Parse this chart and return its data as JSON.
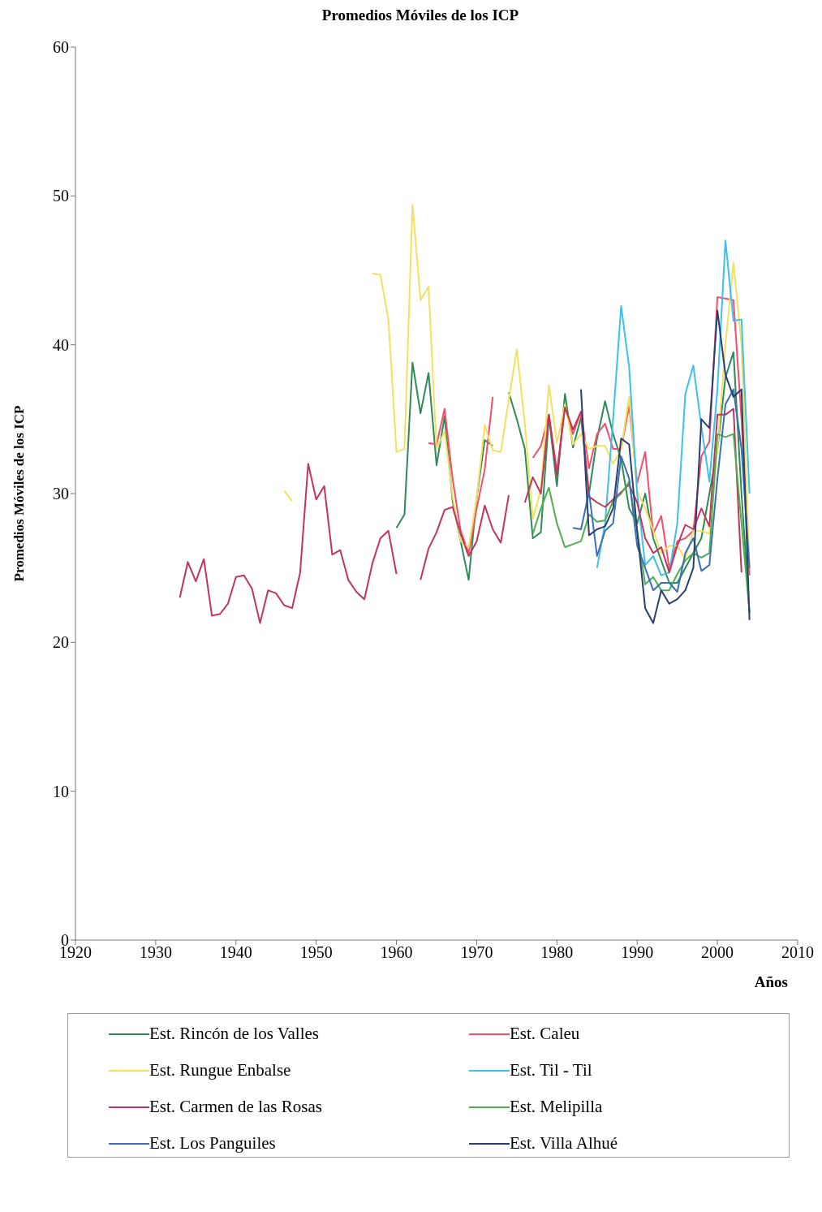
{
  "chart_data": {
    "type": "line",
    "title": "Promedios Móviles de los ICP",
    "xlabel": "Años",
    "ylabel": "Promedios Móviles de los ICP",
    "xlim": [
      1920,
      2010
    ],
    "xticks": [
      1920,
      1930,
      1940,
      1950,
      1960,
      1970,
      1980,
      1990,
      2000,
      2010
    ],
    "ylim": [
      0,
      60
    ],
    "yticks": [
      0,
      10,
      20,
      30,
      40,
      50,
      60
    ],
    "grid": false,
    "legend": "bottom",
    "marker": "none",
    "line_style": "solid",
    "series": [
      {
        "name": "Est. Rincón de los Valles",
        "color": "#2e8b57",
        "x": [
          1960,
          1961,
          1962,
          1963,
          1964,
          1965,
          1966,
          1967,
          1968,
          1969,
          1970,
          1971,
          1972,
          1973,
          1974,
          1975,
          1976,
          1977,
          1978,
          1979,
          1980,
          1981,
          1982,
          1983,
          1984,
          1985,
          1986,
          1987,
          1988,
          1989,
          1990,
          1991,
          1992,
          1993,
          1994,
          1995,
          1996,
          1997,
          1998,
          1999,
          2000,
          2001,
          2002,
          2003,
          2004
        ],
        "values": [
          27.7,
          28.6,
          38.8,
          35.4,
          38.1,
          31.9,
          35.2,
          29.5,
          26.8,
          24.2,
          29.7,
          33.6,
          33.2,
          null,
          36.8,
          35.0,
          33.0,
          27.0,
          27.4,
          35.2,
          30.5,
          36.7,
          33.1,
          35.1,
          30.0,
          33.7,
          36.2,
          34.0,
          32.3,
          29.0,
          28.0,
          30.0,
          27.0,
          25.5,
          24.0,
          24.0,
          25.0,
          26.0,
          27.0,
          30.0,
          33.0,
          37.8,
          39.5,
          30.0,
          22.0
        ]
      },
      {
        "name": "Est. Caleu",
        "color": "#f0506e",
        "x": [
          1964,
          1965,
          1966,
          1967,
          1968,
          1969,
          1970,
          1971,
          1972,
          1973,
          1974,
          1975,
          1976,
          1977,
          1978,
          1979,
          1980,
          1981,
          1982,
          1983,
          1984,
          1985,
          1986,
          1987,
          1988,
          1989,
          1990,
          1991,
          1992,
          1993,
          1994,
          1995,
          1996,
          1997,
          1998,
          1999,
          2000,
          2001,
          2002,
          2003,
          2004
        ],
        "values": [
          33.4,
          33.3,
          35.7,
          31.0,
          27.5,
          26.0,
          29.0,
          31.6,
          36.5,
          null,
          null,
          null,
          null,
          32.4,
          33.2,
          35.3,
          31.5,
          35.8,
          34.0,
          35.5,
          31.7,
          34.0,
          34.7,
          33.0,
          33.0,
          35.9,
          30.7,
          32.8,
          27.3,
          28.5,
          25.0,
          26.8,
          27.0,
          27.5,
          32.5,
          33.5,
          43.2,
          43.1,
          43.0,
          35.0,
          24.5
        ]
      },
      {
        "name": "Est. Rungue Enbalse",
        "color": "#f2e160",
        "x": [
          1946,
          1947,
          1948,
          1949,
          1950,
          1951,
          1952,
          1953,
          1954,
          1955,
          1956,
          1957,
          1958,
          1959,
          1960,
          1961,
          1962,
          1963,
          1964,
          1965,
          1966,
          1967,
          1968,
          1969,
          1970,
          1971,
          1972,
          1973,
          1974,
          1975,
          1976,
          1977,
          1978,
          1979,
          1980,
          1981,
          1982,
          1983,
          1984,
          1985,
          1986,
          1987,
          1988,
          1989,
          1990,
          1991,
          1992,
          1993,
          1994,
          1995,
          1996,
          1997,
          1998,
          1999,
          2000,
          2001,
          2002,
          2003,
          2004
        ],
        "values": [
          30.2,
          29.5,
          null,
          null,
          null,
          null,
          null,
          null,
          null,
          null,
          null,
          44.8,
          44.7,
          41.7,
          32.8,
          33.0,
          49.4,
          43.0,
          43.9,
          33.0,
          34.2,
          29.8,
          26.8,
          26.4,
          29.7,
          34.6,
          32.9,
          32.8,
          36.3,
          39.7,
          34.7,
          28.3,
          30.3,
          37.3,
          33.4,
          36.0,
          33.3,
          34.0,
          33.0,
          33.2,
          33.2,
          32.0,
          33.0,
          36.5,
          30.2,
          29.0,
          27.5,
          26.0,
          26.5,
          26.5,
          25.6,
          27.5,
          27.5,
          27.3,
          33.0,
          40.0,
          45.5,
          40.0,
          25.0
        ]
      },
      {
        "name": "Est. Til - Til",
        "color": "#40c0e8",
        "x": [
          1985,
          1986,
          1987,
          1988,
          1989,
          1990,
          1991,
          1992,
          1993,
          1994,
          1995,
          1996,
          1997,
          1998,
          1999,
          2000,
          2001,
          2002,
          2003,
          2004
        ],
        "values": [
          25.0,
          28.0,
          35.0,
          42.6,
          38.5,
          30.0,
          25.2,
          25.8,
          24.5,
          24.7,
          28.0,
          36.7,
          38.6,
          34.5,
          30.8,
          37.0,
          47.0,
          41.6,
          41.7,
          30.0
        ]
      },
      {
        "name": "Est. Carmen de las Rosas",
        "color": "#c0365a",
        "x": [
          1933,
          1934,
          1935,
          1936,
          1937,
          1938,
          1939,
          1940,
          1941,
          1942,
          1943,
          1944,
          1945,
          1946,
          1947,
          1948,
          1949,
          1950,
          1951,
          1952,
          1953,
          1954,
          1955,
          1956,
          1957,
          1958,
          1959,
          1960,
          1961,
          1962,
          1963,
          1964,
          1965,
          1966,
          1967,
          1968,
          1969,
          1970,
          1971,
          1972,
          1973,
          1974,
          1975,
          1976,
          1977,
          1978,
          1979,
          1980,
          1981,
          1982,
          1983,
          1984,
          1985,
          1986,
          1987,
          1988,
          1989,
          1990,
          1991,
          1992,
          1993,
          1994,
          1995,
          1996,
          1997,
          1998,
          1999,
          2000,
          2001,
          2002,
          2003
        ],
        "values": [
          23.0,
          25.4,
          24.1,
          25.6,
          21.8,
          21.9,
          22.6,
          24.4,
          24.5,
          23.6,
          21.3,
          23.5,
          23.3,
          22.5,
          22.3,
          24.7,
          32.0,
          29.6,
          30.5,
          25.9,
          26.2,
          24.2,
          23.4,
          22.9,
          25.3,
          27.0,
          27.5,
          24.6,
          null,
          null,
          24.2,
          26.3,
          27.4,
          28.9,
          29.1,
          27.3,
          25.8,
          26.8,
          29.2,
          27.6,
          26.7,
          29.9,
          null,
          29.4,
          31.1,
          30.0,
          35.3,
          31.2,
          35.8,
          34.3,
          35.5,
          29.8,
          29.4,
          29.1,
          29.6,
          30.1,
          30.6,
          29.4,
          27.0,
          26.0,
          26.4,
          24.7,
          26.5,
          27.9,
          27.6,
          29.0,
          27.8,
          35.3,
          35.3,
          35.7,
          24.7
        ]
      },
      {
        "name": "Est. Melipilla",
        "color": "#4caf50",
        "x": [
          1977,
          1978,
          1979,
          1980,
          1981,
          1982,
          1983,
          1984,
          1985,
          1986,
          1987,
          1988,
          1989,
          1990,
          1991,
          1992,
          1993,
          1994,
          1995,
          1996,
          1997,
          1998,
          1999,
          2000,
          2001,
          2002,
          2003,
          2004
        ],
        "values": [
          27.3,
          29.0,
          30.4,
          28.0,
          26.4,
          26.6,
          26.8,
          28.6,
          28.1,
          28.2,
          29.5,
          30.0,
          30.8,
          27.5,
          23.9,
          24.4,
          23.5,
          23.5,
          24.6,
          25.5,
          26.0,
          25.7,
          26.0,
          34.0,
          33.8,
          34.0,
          28.0,
          22.0
        ]
      },
      {
        "name": "Est. Los Panguiles",
        "color": "#3c6fb4",
        "x": [
          1982,
          1983,
          1984,
          1985,
          1986,
          1987,
          1988,
          1989,
          1990,
          1991,
          1992,
          1993,
          1994,
          1995,
          1996,
          1997,
          1998,
          1999,
          2000,
          2001,
          2002,
          2003,
          2004
        ],
        "values": [
          27.7,
          27.6,
          30.1,
          25.8,
          27.5,
          28.0,
          32.5,
          31.0,
          26.5,
          25.0,
          23.5,
          24.0,
          24.0,
          23.4,
          26.0,
          27.0,
          24.8,
          25.2,
          31.0,
          36.0,
          37.0,
          33.0,
          25.0
        ]
      },
      {
        "name": "Est. Villa Alhué",
        "color": "#2b3f6e",
        "x": [
          1983,
          1984,
          1985,
          1986,
          1987,
          1988,
          1989,
          1990,
          1991,
          1992,
          1993,
          1994,
          1995,
          1996,
          1997,
          1998,
          1999,
          2000,
          2001,
          2002,
          2003,
          2004
        ],
        "values": [
          37.0,
          27.2,
          27.6,
          27.8,
          29.0,
          33.7,
          33.3,
          27.5,
          22.3,
          21.3,
          23.5,
          22.6,
          22.9,
          23.5,
          25.0,
          35.0,
          34.4,
          42.3,
          38.0,
          36.5,
          37.0,
          21.5
        ]
      }
    ]
  }
}
